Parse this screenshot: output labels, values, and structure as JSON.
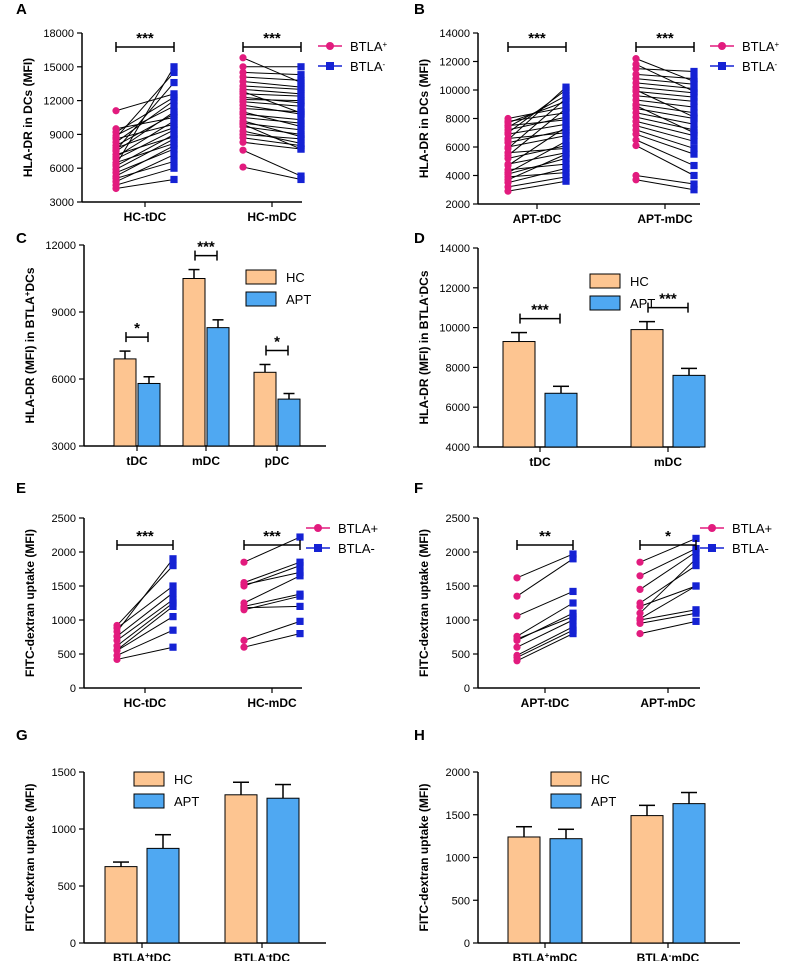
{
  "colors": {
    "hc": "#FDC591",
    "apt": "#4FA8F2",
    "btla_pos": "#E21B7E",
    "btla_neg": "#1522D4",
    "line": "#000000"
  },
  "chart_data": [
    {
      "panel": "A",
      "type": "scatter",
      "ylabel": "HLA-DR in DCs (MFI)",
      "ylim": [
        3000,
        18000
      ],
      "yticks": [
        "3000",
        "6000",
        "9000",
        "12000",
        "15000",
        "18000"
      ],
      "categories": [
        "HC-tDC",
        "HC-mDC"
      ],
      "legend": [
        {
          "name": "BTLA",
          "sup": "+"
        },
        {
          "name": "BTLA",
          "sup": "-"
        }
      ],
      "significance": [
        "***",
        "***"
      ],
      "pairs": [
        [
          [
            4200,
            5000
          ],
          [
            4500,
            6000
          ],
          [
            4800,
            7200
          ],
          [
            5100,
            6600
          ],
          [
            5300,
            8000
          ],
          [
            5600,
            7700
          ],
          [
            5900,
            8600
          ],
          [
            6200,
            9000
          ],
          [
            6500,
            8200
          ],
          [
            6800,
            9400
          ],
          [
            7000,
            10200
          ],
          [
            7200,
            8800
          ],
          [
            7500,
            11000
          ],
          [
            7800,
            9600
          ],
          [
            8000,
            10800
          ],
          [
            8300,
            12000
          ],
          [
            8600,
            9900
          ],
          [
            8900,
            11500
          ],
          [
            9200,
            12300
          ],
          [
            9500,
            10500
          ],
          [
            11100,
            12600
          ],
          [
            7600,
            13600
          ],
          [
            6300,
            15000
          ],
          [
            8700,
            14500
          ]
        ],
        [
          [
            6100,
            5000
          ],
          [
            7600,
            5300
          ],
          [
            8300,
            7700
          ],
          [
            8700,
            8000
          ],
          [
            9000,
            8600
          ],
          [
            9300,
            8200
          ],
          [
            9700,
            9000
          ],
          [
            10000,
            9400
          ],
          [
            10200,
            8800
          ],
          [
            10500,
            10000
          ],
          [
            10800,
            10300
          ],
          [
            11000,
            9700
          ],
          [
            11300,
            11000
          ],
          [
            11600,
            10800
          ],
          [
            11900,
            11500
          ],
          [
            12100,
            12000
          ],
          [
            12300,
            11800
          ],
          [
            12600,
            12400
          ],
          [
            13000,
            12600
          ],
          [
            13300,
            13000
          ],
          [
            13700,
            13200
          ],
          [
            14100,
            13800
          ],
          [
            14500,
            14300
          ],
          [
            15000,
            15000
          ],
          [
            15800,
            13600
          ],
          [
            9900,
            7700
          ],
          [
            12800,
            10900
          ]
        ]
      ]
    },
    {
      "panel": "B",
      "type": "scatter",
      "ylabel": "HLA-DR in DCs (MFI)",
      "ylim": [
        2000,
        14000
      ],
      "yticks": [
        "2000",
        "4000",
        "6000",
        "8000",
        "10000",
        "12000",
        "14000"
      ],
      "categories": [
        "APT-tDC",
        "APT-mDC"
      ],
      "legend": [
        {
          "name": "BTLA",
          "sup": "+"
        },
        {
          "name": "BTLA",
          "sup": "-"
        }
      ],
      "significance": [
        "***",
        "***"
      ],
      "pairs": [
        [
          [
            2900,
            3600
          ],
          [
            3200,
            3900
          ],
          [
            3500,
            4500
          ],
          [
            3900,
            4200
          ],
          [
            4100,
            5200
          ],
          [
            4400,
            4800
          ],
          [
            4800,
            5600
          ],
          [
            5200,
            6100
          ],
          [
            5600,
            5900
          ],
          [
            6000,
            6800
          ],
          [
            6300,
            7200
          ],
          [
            6600,
            7000
          ],
          [
            6900,
            7600
          ],
          [
            7200,
            8100
          ],
          [
            7500,
            7900
          ],
          [
            7800,
            8400
          ],
          [
            8000,
            8800
          ],
          [
            7700,
            9200
          ],
          [
            7400,
            9600
          ],
          [
            7000,
            10000
          ],
          [
            6500,
            10200
          ],
          [
            5900,
            9400
          ],
          [
            5400,
            8700
          ],
          [
            4700,
            7400
          ],
          [
            4200,
            6400
          ],
          [
            3700,
            5500
          ]
        ],
        [
          [
            3700,
            3000
          ],
          [
            4000,
            3400
          ],
          [
            6100,
            4000
          ],
          [
            6500,
            4700
          ],
          [
            6900,
            5500
          ],
          [
            7200,
            5900
          ],
          [
            7500,
            6400
          ],
          [
            7800,
            6800
          ],
          [
            8100,
            7200
          ],
          [
            8400,
            7600
          ],
          [
            8700,
            8000
          ],
          [
            9000,
            8400
          ],
          [
            9300,
            8800
          ],
          [
            9600,
            9200
          ],
          [
            9900,
            9500
          ],
          [
            10200,
            9800
          ],
          [
            10500,
            10100
          ],
          [
            10800,
            10400
          ],
          [
            11100,
            10800
          ],
          [
            11500,
            11300
          ],
          [
            12200,
            10600
          ],
          [
            10000,
            8100
          ],
          [
            8900,
            7000
          ],
          [
            11800,
            9900
          ]
        ]
      ]
    },
    {
      "panel": "C",
      "type": "bar",
      "ylabel": "HLA-DR (MFI) in BTLA+DCs",
      "ylabel_parts": [
        "HLA-DR (MFI) in BTLA",
        "+",
        "DCs"
      ],
      "ylim": [
        3000,
        12000
      ],
      "yticks": [
        "3000",
        "6000",
        "9000",
        "12000"
      ],
      "categories": [
        "tDC",
        "mDC",
        "pDC"
      ],
      "series": [
        {
          "name": "HC",
          "values": [
            6900,
            10500,
            6300
          ],
          "errors": [
            350,
            400,
            350
          ]
        },
        {
          "name": "APT",
          "values": [
            5800,
            8300,
            5100
          ],
          "errors": [
            300,
            350,
            250
          ]
        }
      ],
      "significance": [
        "*",
        "***",
        "*"
      ]
    },
    {
      "panel": "D",
      "type": "bar",
      "ylabel": "HLA-DR (MFI) in BTLA-DCs",
      "ylabel_parts": [
        "HLA-DR (MFI) in BTLA",
        "-",
        "DCs"
      ],
      "ylim": [
        4000,
        14000
      ],
      "yticks": [
        "4000",
        "6000",
        "8000",
        "10000",
        "12000",
        "14000"
      ],
      "categories": [
        "tDC",
        "mDC"
      ],
      "series": [
        {
          "name": "HC",
          "values": [
            9300,
            9900
          ],
          "errors": [
            450,
            400
          ]
        },
        {
          "name": "APT",
          "values": [
            6700,
            7600
          ],
          "errors": [
            350,
            350
          ]
        }
      ],
      "significance": [
        "***",
        "***"
      ]
    },
    {
      "panel": "E",
      "type": "scatter",
      "ylabel": "FITC-dextran uptake (MFI)",
      "ylim": [
        0,
        2500
      ],
      "yticks": [
        "0",
        "500",
        "1000",
        "1500",
        "2000",
        "2500"
      ],
      "categories": [
        "HC-tDC",
        "HC-mDC"
      ],
      "legend": [
        {
          "name": "BTLA+",
          "sup": ""
        },
        {
          "name": "BTLA-",
          "sup": ""
        }
      ],
      "significance": [
        "***",
        "***"
      ],
      "pairs": [
        [
          [
            420,
            600
          ],
          [
            480,
            850
          ],
          [
            560,
            1200
          ],
          [
            620,
            1250
          ],
          [
            700,
            1300
          ],
          [
            760,
            1400
          ],
          [
            830,
            1900
          ],
          [
            880,
            1500
          ],
          [
            920,
            1800
          ],
          [
            550,
            1050
          ]
        ],
        [
          [
            600,
            800
          ],
          [
            700,
            980
          ],
          [
            1150,
            1350
          ],
          [
            1180,
            1200
          ],
          [
            1200,
            1380
          ],
          [
            1250,
            1650
          ],
          [
            1500,
            1800
          ],
          [
            1520,
            1700
          ],
          [
            1550,
            1850
          ],
          [
            1850,
            2220
          ]
        ]
      ]
    },
    {
      "panel": "F",
      "type": "scatter",
      "ylabel": "FITC-dextran uptake (MFI)",
      "ylim": [
        0,
        2500
      ],
      "yticks": [
        "0",
        "500",
        "1000",
        "1500",
        "2000",
        "2500"
      ],
      "categories": [
        "APT-tDC",
        "APT-mDC"
      ],
      "legend": [
        {
          "name": "BTLA+",
          "sup": ""
        },
        {
          "name": "BTLA-",
          "sup": ""
        }
      ],
      "significance": [
        "**",
        "*"
      ],
      "pairs": [
        [
          [
            400,
            800
          ],
          [
            480,
            900
          ],
          [
            600,
            1000
          ],
          [
            700,
            1100
          ],
          [
            720,
            1050
          ],
          [
            760,
            1250
          ],
          [
            1060,
            1420
          ],
          [
            1350,
            1900
          ],
          [
            1620,
            1970
          ],
          [
            450,
            850
          ]
        ],
        [
          [
            800,
            980
          ],
          [
            950,
            1100
          ],
          [
            1000,
            1150
          ],
          [
            1020,
            1500
          ],
          [
            1100,
            1900
          ],
          [
            1250,
            1800
          ],
          [
            1450,
            2000
          ],
          [
            1650,
            2050
          ],
          [
            1850,
            2200
          ],
          [
            1200,
            1500
          ]
        ]
      ]
    },
    {
      "panel": "G",
      "type": "bar",
      "ylabel": "FITC-dextran uptake (MFI)",
      "ylim": [
        0,
        1500
      ],
      "yticks": [
        "0",
        "500",
        "1000",
        "1500"
      ],
      "categories": [
        "BTLA+tDC",
        "BTLA-tDC"
      ],
      "category_parts": [
        [
          "BTLA",
          "+",
          "tDC"
        ],
        [
          "BTLA",
          "-",
          "tDC"
        ]
      ],
      "series": [
        {
          "name": "HC",
          "values": [
            670,
            1300
          ],
          "errors": [
            40,
            110
          ]
        },
        {
          "name": "APT",
          "values": [
            830,
            1270
          ],
          "errors": [
            120,
            120
          ]
        }
      ]
    },
    {
      "panel": "H",
      "type": "bar",
      "ylabel": "FITC-dextran uptake (MFI)",
      "ylim": [
        0,
        2000
      ],
      "yticks": [
        "0",
        "500",
        "1000",
        "1500",
        "2000"
      ],
      "categories": [
        "BTLA+mDC",
        "BTLA-mDC"
      ],
      "category_parts": [
        [
          "BTLA",
          "+",
          "mDC"
        ],
        [
          "BTLA",
          "-",
          "mDC"
        ]
      ],
      "series": [
        {
          "name": "HC",
          "values": [
            1240,
            1490
          ],
          "errors": [
            120,
            120
          ]
        },
        {
          "name": "APT",
          "values": [
            1220,
            1630
          ],
          "errors": [
            110,
            130
          ]
        }
      ]
    }
  ]
}
